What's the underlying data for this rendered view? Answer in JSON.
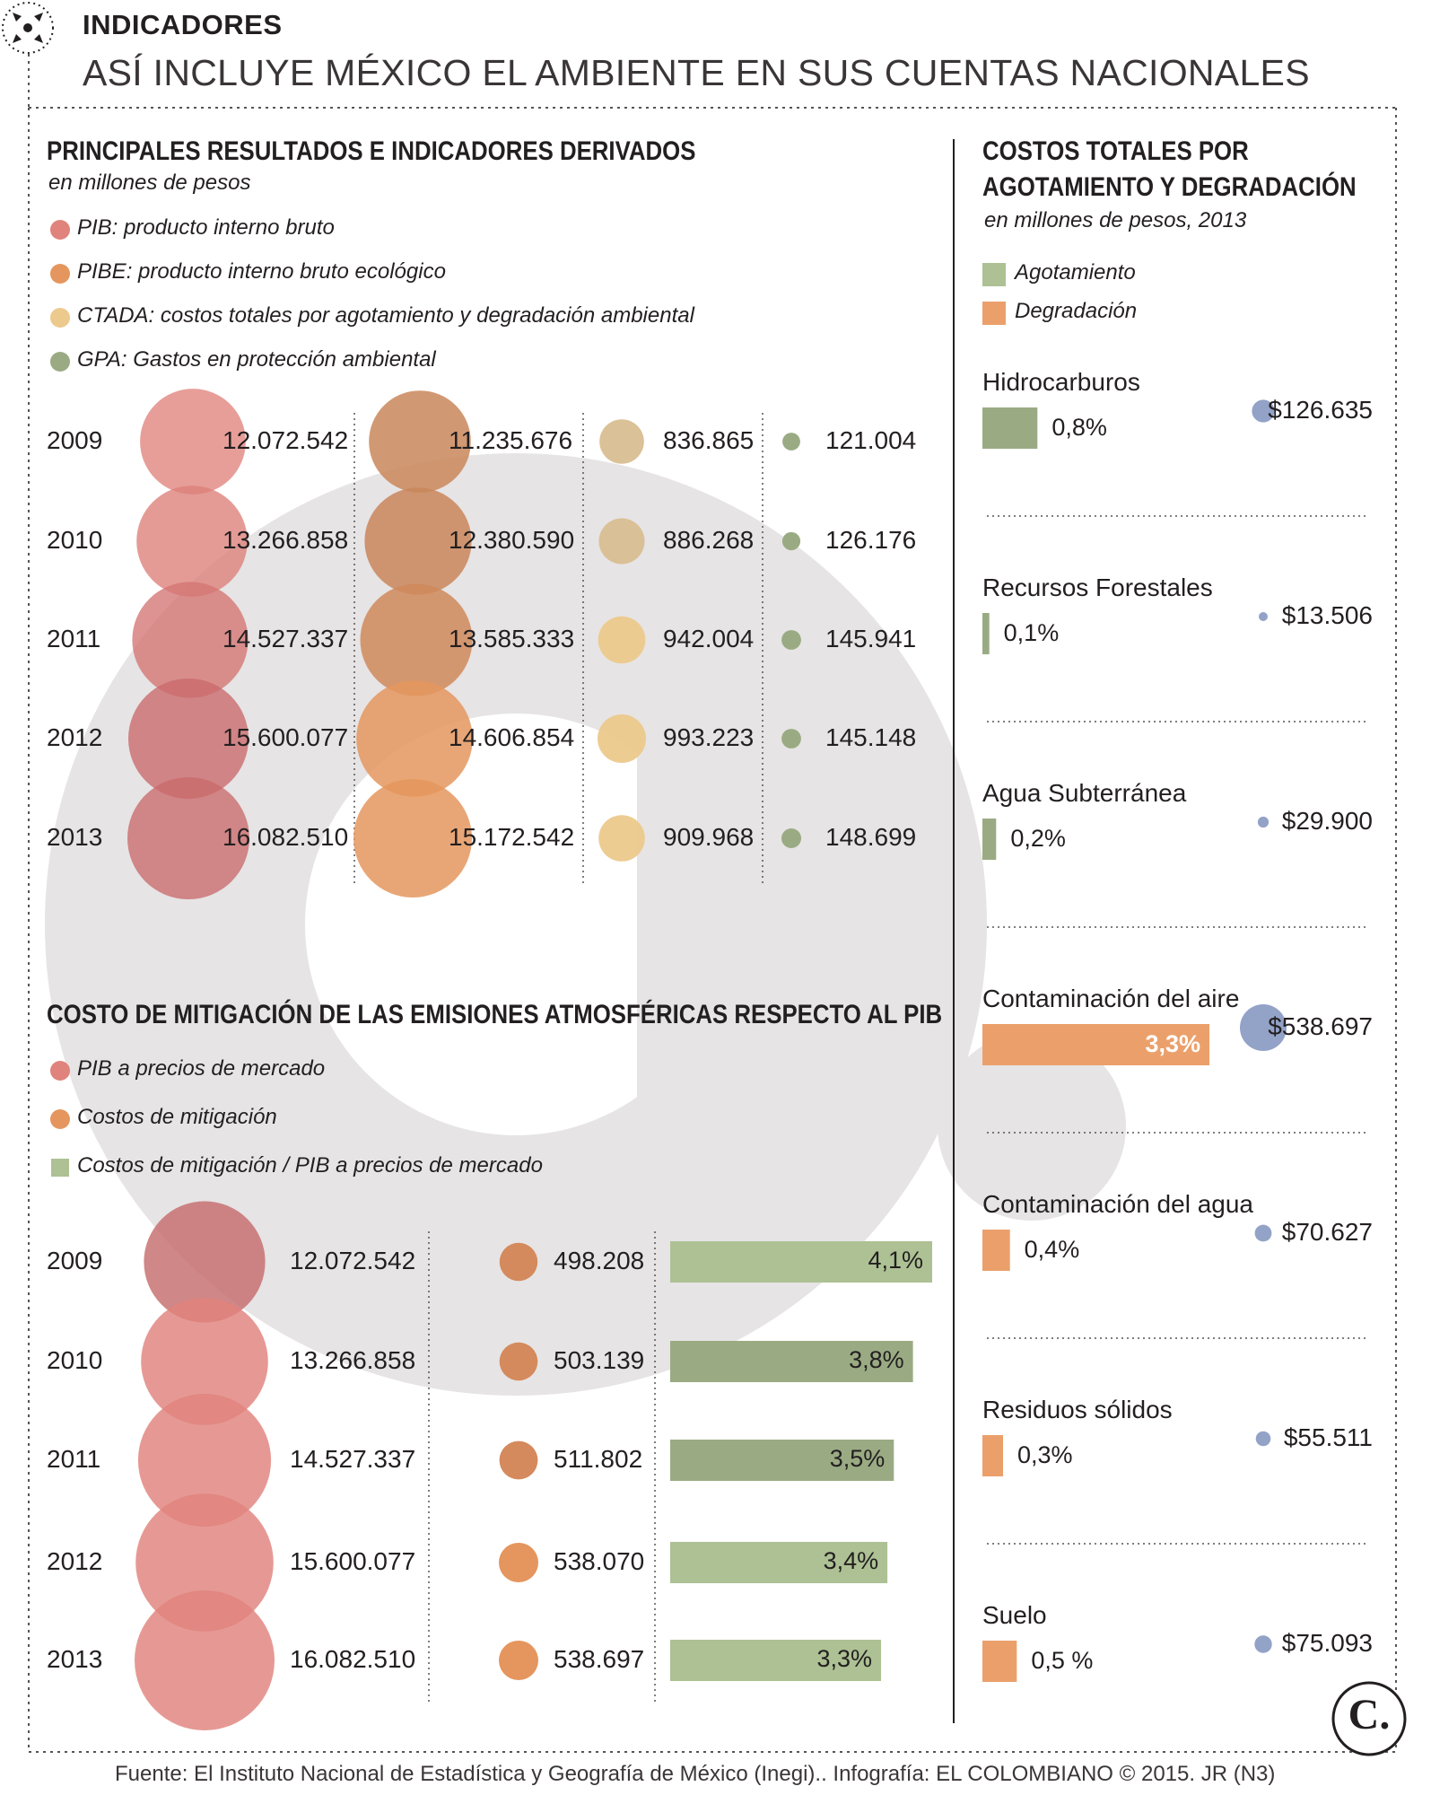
{
  "header": {
    "kicker": "INDICADORES",
    "title": "ASÍ INCLUYE MÉXICO EL AMBIENTE EN SUS CUENTAS NACIONALES"
  },
  "colors": {
    "pib": "#e0837c",
    "pibe": "#e4965e",
    "ctada": "#ecc98c",
    "gpa": "#9aab83",
    "agotamiento": "#adc194",
    "degradacion": "#eba06b",
    "dot": "#93a2c7",
    "watermark": "#e6e4e5"
  },
  "chart_data": [
    {
      "type": "bubble",
      "title": "PRINCIPALES RESULTADOS E INDICADORES DERIVADOS",
      "subtitle": "en millones de pesos",
      "legend": [
        "PIB: producto interno bruto",
        "PIBE: producto interno bruto ecológico",
        "CTADA: costos totales por agotamiento y degradación ambiental",
        "GPA: Gastos en protección ambiental"
      ],
      "categories": [
        "2009",
        "2010",
        "2011",
        "2012",
        "2013"
      ],
      "series": [
        {
          "name": "PIB",
          "values": [
            12072542,
            13266858,
            14527337,
            15600077,
            16082510
          ],
          "labels": [
            "12.072.542",
            "13.266.858",
            "14.527.337",
            "15.600.077",
            "16.082.510"
          ]
        },
        {
          "name": "PIBE",
          "values": [
            11235676,
            12380590,
            13585333,
            14606854,
            15172542
          ],
          "labels": [
            "11.235.676",
            "12.380.590",
            "13.585.333",
            "14.606.854",
            "15.172.542"
          ]
        },
        {
          "name": "CTADA",
          "values": [
            836865,
            886268,
            942004,
            993223,
            909968
          ],
          "labels": [
            "836.865",
            "886.268",
            "942.004",
            "993.223",
            "909.968"
          ]
        },
        {
          "name": "GPA",
          "values": [
            121004,
            126176,
            145941,
            145148,
            148699
          ],
          "labels": [
            "121.004",
            "126.176",
            "145.941",
            "145.148",
            "148.699"
          ]
        }
      ]
    },
    {
      "type": "bubble+bar",
      "title": "COSTO DE MITIGACIÓN DE LAS EMISIONES ATMOSFÉRICAS RESPECTO AL PIB",
      "legend": [
        "PIB a precios de mercado",
        "Costos de mitigación",
        "Costos de mitigación / PIB a precios de mercado"
      ],
      "categories": [
        "2009",
        "2010",
        "2011",
        "2012",
        "2013"
      ],
      "series": [
        {
          "name": "PIB a precios de mercado",
          "values": [
            12072542,
            13266858,
            14527337,
            15600077,
            16082510
          ],
          "labels": [
            "12.072.542",
            "13.266.858",
            "14.527.337",
            "15.600.077",
            "16.082.510"
          ]
        },
        {
          "name": "Costos de mitigación",
          "values": [
            498208,
            503139,
            511802,
            538070,
            538697
          ],
          "labels": [
            "498.208",
            "503.139",
            "511.802",
            "538.070",
            "538.697"
          ]
        },
        {
          "name": "Costos de mitigación / PIB a precios de mercado",
          "values": [
            4.1,
            3.8,
            3.5,
            3.4,
            3.3
          ],
          "labels": [
            "4,1%",
            "3,8%",
            "3,5%",
            "3,4%",
            "3,3%"
          ]
        }
      ]
    },
    {
      "type": "bar+bubble",
      "title": "COSTOS TOTALES POR AGOTAMIENTO Y DEGRADACIÓN",
      "subtitle": "en millones de pesos, 2013",
      "legend": [
        "Agotamiento",
        "Degradación"
      ],
      "items": [
        {
          "name": "Hidrocarburos",
          "kind": "Agotamiento",
          "pct": 0.8,
          "pct_label": "0,8%",
          "value": 126635,
          "value_label": "$126.635"
        },
        {
          "name": "Recursos Forestales",
          "kind": "Agotamiento",
          "pct": 0.1,
          "pct_label": "0,1%",
          "value": 13506,
          "value_label": "$13.506"
        },
        {
          "name": "Agua Subterránea",
          "kind": "Agotamiento",
          "pct": 0.2,
          "pct_label": "0,2%",
          "value": 29900,
          "value_label": "$29.900"
        },
        {
          "name": "Contaminación del aire",
          "kind": "Degradación",
          "pct": 3.3,
          "pct_label": "3,3%",
          "value": 538697,
          "value_label": "$538.697"
        },
        {
          "name": "Contaminación del agua",
          "kind": "Degradación",
          "pct": 0.4,
          "pct_label": "0,4%",
          "value": 70627,
          "value_label": "$70.627"
        },
        {
          "name": "Residuos sólidos",
          "kind": "Degradación",
          "pct": 0.3,
          "pct_label": "0,3%",
          "value": 55511,
          "value_label": "$55.511"
        },
        {
          "name": "Suelo",
          "kind": "Degradación",
          "pct": 0.5,
          "pct_label": "0,5 %",
          "value": 75093,
          "value_label": "$75.093"
        }
      ]
    }
  ],
  "footer": {
    "source": "Fuente: El Instituto Nacional de Estadística y Geografía de México (Inegi).. Infografía: EL COLOMBIANO © 2015. JR (N3)",
    "logo_text": "C."
  }
}
